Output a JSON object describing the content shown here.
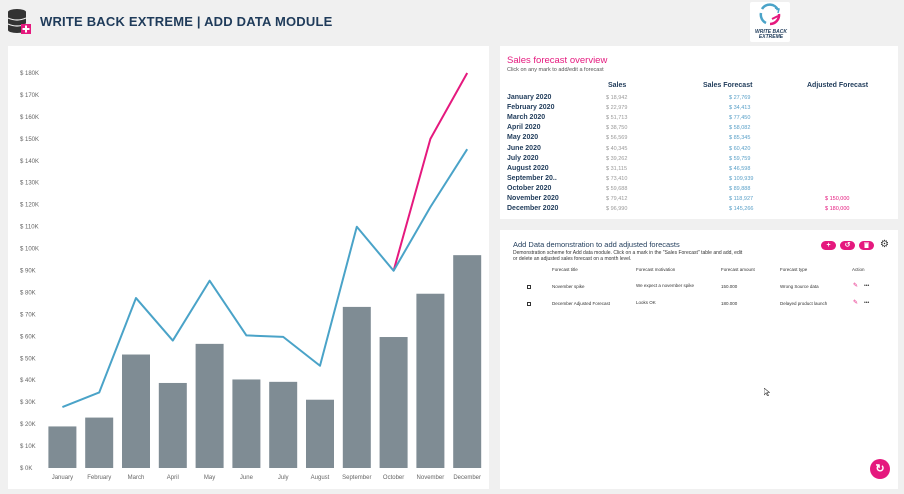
{
  "app": {
    "title": "WRITE BACK EXTREME | ADD DATA MODULE",
    "logo_text": "WRITE BACK EXTREME"
  },
  "colors": {
    "brand_pink": "#e5197e",
    "navy": "#1f3b5a",
    "bar_gray": "#7f8c94",
    "forecast_line": "#4aa3c8",
    "adjusted_line": "#e5197e"
  },
  "icons": {
    "header": "database-add-icon",
    "add": "plus-icon",
    "undo": "undo-icon",
    "delete": "trash-icon",
    "settings": "gear-icon",
    "refresh": "refresh-icon",
    "edit": "pencil-icon",
    "more": "ellipsis-icon"
  },
  "chart_data": {
    "type": "bar",
    "categories": [
      "January",
      "February",
      "March",
      "April",
      "May",
      "June",
      "July",
      "August",
      "September",
      "October",
      "November",
      "December"
    ],
    "ylim": [
      0,
      180000
    ],
    "yticks": [
      "$ 0K",
      "$ 10K",
      "$ 20K",
      "$ 30K",
      "$ 40K",
      "$ 50K",
      "$ 60K",
      "$ 70K",
      "$ 80K",
      "$ 90K",
      "$ 100K",
      "$ 110K",
      "$ 120K",
      "$ 130K",
      "$ 140K",
      "$ 150K",
      "$ 160K",
      "$ 170K",
      "$ 180K"
    ],
    "series": [
      {
        "values": [
          18942,
          22979,
          51713,
          38750,
          56569,
          40345,
          39262,
          31115,
          73410,
          59688,
          79412,
          96990
        ]
      },
      {
        "values": [
          27769,
          34413,
          77450,
          58082,
          85345,
          60420,
          59759,
          46598,
          109939,
          89888,
          118927,
          145266
        ]
      },
      {
        "values": [
          null,
          null,
          null,
          null,
          null,
          null,
          null,
          null,
          null,
          89888,
          150000,
          180000
        ]
      }
    ]
  },
  "sales": {
    "title": "Sales forecast overview",
    "subtitle": "Click on any mark to add/edit a forecast",
    "headers": {
      "sales": "Sales",
      "forecast": "Sales Forecast",
      "adjusted": "Adjusted Forecast"
    },
    "rows": [
      {
        "month": "January 2020",
        "sales": "$ 18,942",
        "forecast": "$ 27,769",
        "adjusted": ""
      },
      {
        "month": "February 2020",
        "sales": "$ 22,979",
        "forecast": "$ 34,413",
        "adjusted": ""
      },
      {
        "month": "March 2020",
        "sales": "$ 51,713",
        "forecast": "$ 77,450",
        "adjusted": ""
      },
      {
        "month": "April 2020",
        "sales": "$ 38,750",
        "forecast": "$ 58,082",
        "adjusted": ""
      },
      {
        "month": "May 2020",
        "sales": "$ 56,569",
        "forecast": "$ 85,345",
        "adjusted": ""
      },
      {
        "month": "June 2020",
        "sales": "$ 40,345",
        "forecast": "$ 60,420",
        "adjusted": ""
      },
      {
        "month": "July 2020",
        "sales": "$ 39,262",
        "forecast": "$ 59,759",
        "adjusted": ""
      },
      {
        "month": "August 2020",
        "sales": "$ 31,115",
        "forecast": "$ 46,598",
        "adjusted": ""
      },
      {
        "month": "September 20..",
        "sales": "$ 73,410",
        "forecast": "$ 109,939",
        "adjusted": ""
      },
      {
        "month": "October 2020",
        "sales": "$ 59,688",
        "forecast": "$ 89,888",
        "adjusted": ""
      },
      {
        "month": "November 2020",
        "sales": "$ 79,412",
        "forecast": "$ 118,927",
        "adjusted": "$ 150,000"
      },
      {
        "month": "December 2020",
        "sales": "$ 96,990",
        "forecast": "$ 145,266",
        "adjusted": "$ 180,000"
      }
    ]
  },
  "adddata": {
    "title": "Add Data demonstration to add adjusted forecasts",
    "description": "Demonstration scheme for Add data module. Click on a mark in the \"Sales Forecast\" table and add, edit or delete an adjusted sales forecast on a month level.",
    "headers": {
      "title": "Forecast title",
      "motivation": "Forecast motivation",
      "amount": "Forecast amount",
      "type": "Forecast type",
      "action": "Action"
    },
    "rows": [
      {
        "title": "November spike",
        "motivation": "We expect a november spike",
        "amount": "150.000",
        "type": "Wrong Source data"
      },
      {
        "title": "December Adjusted Forecast",
        "motivation": "Looks OK",
        "amount": "180.000",
        "type": "Delayed product launch"
      }
    ]
  }
}
